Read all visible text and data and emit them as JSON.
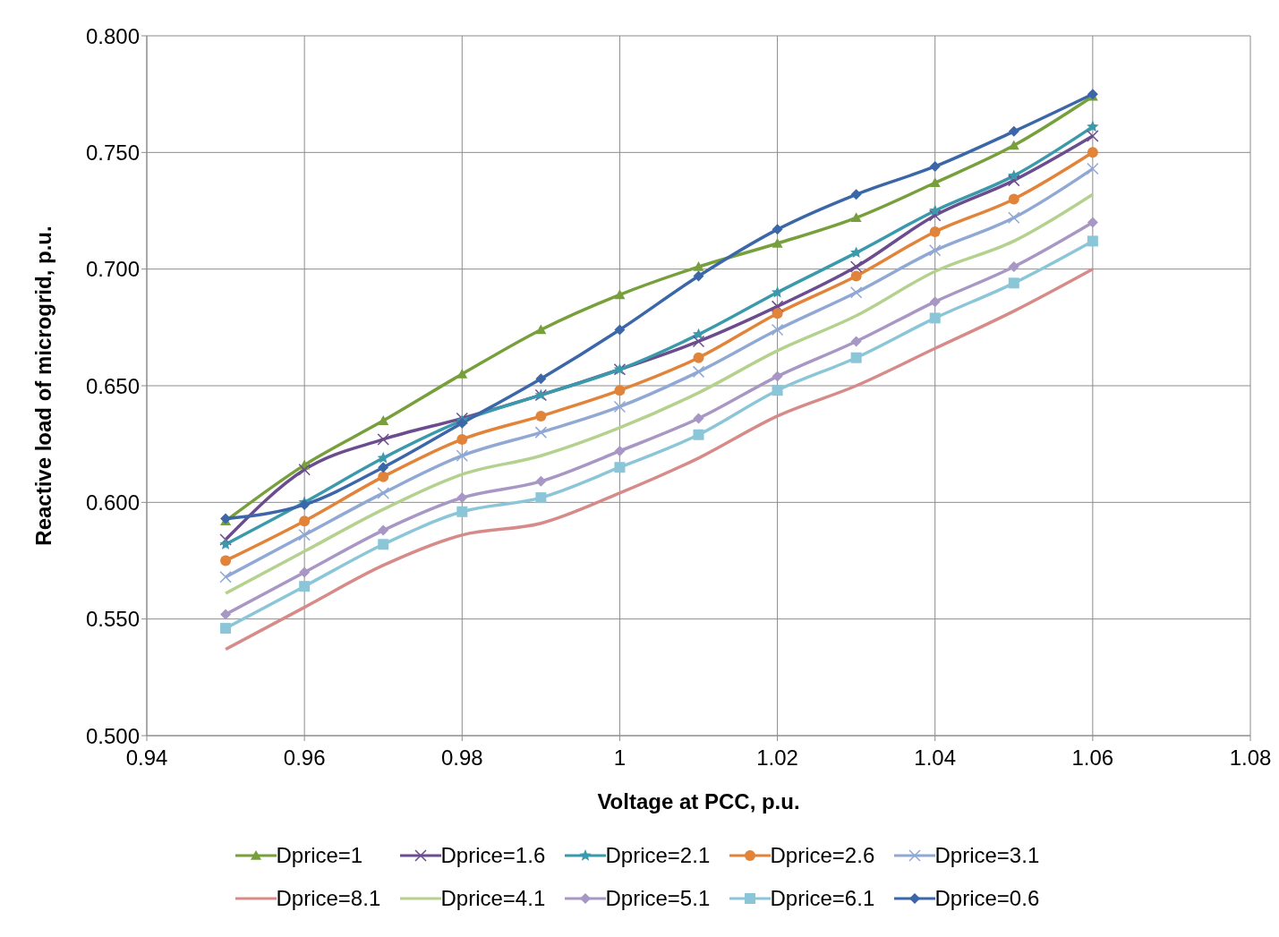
{
  "chart_data": {
    "type": "line",
    "xlabel": "Voltage at PCC, p.u.",
    "ylabel": "Reactive load of microgrid, p.u.",
    "x": [
      0.95,
      0.96,
      0.97,
      0.98,
      0.99,
      1.0,
      1.01,
      1.02,
      1.03,
      1.04,
      1.05,
      1.06
    ],
    "xlim": [
      0.94,
      1.08
    ],
    "xticks": [
      {
        "value": 0.94,
        "label": "0.94"
      },
      {
        "value": 0.96,
        "label": "0.96"
      },
      {
        "value": 0.98,
        "label": "0.98"
      },
      {
        "value": 1,
        "label": "1"
      },
      {
        "value": 1.02,
        "label": "1.02"
      },
      {
        "value": 1.04,
        "label": "1.04"
      },
      {
        "value": 1.06,
        "label": "1.06"
      },
      {
        "value": 1.08,
        "label": "1.08"
      }
    ],
    "ylim": [
      0.5,
      0.8
    ],
    "yticks": [
      {
        "value": 0.5,
        "label": "0.500"
      },
      {
        "value": 0.55,
        "label": "0.550"
      },
      {
        "value": 0.6,
        "label": "0.600"
      },
      {
        "value": 0.65,
        "label": "0.650"
      },
      {
        "value": 0.7,
        "label": "0.700"
      },
      {
        "value": 0.75,
        "label": "0.750"
      },
      {
        "value": 0.8,
        "label": "0.800"
      }
    ],
    "grid": true,
    "legend": "bottom",
    "line_style": "solid",
    "series": [
      {
        "name": "Dprice=1",
        "color": "#77a03c",
        "marker": "triangle",
        "values": [
          0.592,
          0.616,
          0.635,
          0.655,
          0.674,
          0.689,
          0.701,
          0.711,
          0.722,
          0.737,
          0.753,
          0.774
        ]
      },
      {
        "name": "Dprice=1.6",
        "color": "#6b4c8f",
        "marker": "cross",
        "values": [
          0.584,
          0.614,
          0.627,
          0.636,
          0.646,
          0.657,
          0.669,
          0.684,
          0.701,
          0.723,
          0.738,
          0.757
        ]
      },
      {
        "name": "Dprice=2.1",
        "color": "#3a9aac",
        "marker": "star",
        "values": [
          0.582,
          0.6,
          0.619,
          0.635,
          0.646,
          0.657,
          0.672,
          0.69,
          0.707,
          0.725,
          0.74,
          0.761
        ]
      },
      {
        "name": "Dprice=2.6",
        "color": "#e2833a",
        "marker": "circle",
        "values": [
          0.575,
          0.592,
          0.611,
          0.627,
          0.637,
          0.648,
          0.662,
          0.681,
          0.697,
          0.716,
          0.73,
          0.75
        ]
      },
      {
        "name": "Dprice=3.1",
        "color": "#8fa8d4",
        "marker": "cross",
        "values": [
          0.568,
          0.586,
          0.604,
          0.62,
          0.63,
          0.641,
          0.656,
          0.674,
          0.69,
          0.708,
          0.722,
          0.743
        ]
      },
      {
        "name": "Dprice=8.1",
        "color": "#d68b89",
        "marker": "none",
        "values": [
          0.537,
          0.555,
          0.573,
          0.586,
          0.591,
          0.604,
          0.619,
          0.637,
          0.65,
          0.666,
          0.682,
          0.7
        ]
      },
      {
        "name": "Dprice=4.1",
        "color": "#b5d18e",
        "marker": "none",
        "values": [
          0.561,
          0.579,
          0.597,
          0.612,
          0.62,
          0.632,
          0.647,
          0.665,
          0.68,
          0.699,
          0.712,
          0.732
        ]
      },
      {
        "name": "Dprice=5.1",
        "color": "#a897c4",
        "marker": "diamond",
        "values": [
          0.552,
          0.57,
          0.588,
          0.602,
          0.609,
          0.622,
          0.636,
          0.654,
          0.669,
          0.686,
          0.701,
          0.72
        ]
      },
      {
        "name": "Dprice=6.1",
        "color": "#8ac6d8",
        "marker": "square",
        "values": [
          0.546,
          0.564,
          0.582,
          0.596,
          0.602,
          0.615,
          0.629,
          0.648,
          0.662,
          0.679,
          0.694,
          0.712
        ]
      },
      {
        "name": "Dprice=0.6",
        "color": "#3b67a8",
        "marker": "diamond",
        "values": [
          0.593,
          0.599,
          0.615,
          0.634,
          0.653,
          0.674,
          0.697,
          0.717,
          0.732,
          0.744,
          0.759,
          0.775
        ]
      }
    ]
  }
}
